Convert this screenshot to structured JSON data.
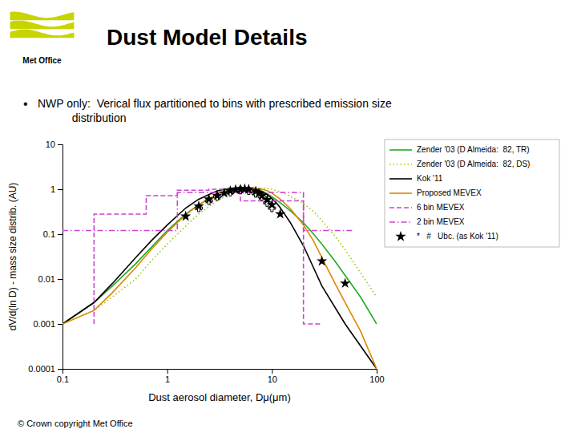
{
  "chart_data": {
    "type": "line",
    "title": "Dust Model Details",
    "annotations": [
      "Met Office",
      "•",
      "NWP only:  Verical flux partitioned to bins with prescribed emission size\n           distribution",
      "© Crown copyright  Met Office"
    ],
    "xlabel": "Dust aerosol diameter, Dμ(μm)",
    "ylabel": "dV/d(ln D) - mass size distrib. (AU)",
    "log": true,
    "grid": false,
    "legend": "right",
    "xlim": [
      0.1,
      100
    ],
    "ylim": [
      0.0001,
      10
    ],
    "xticks": [
      0.1,
      1,
      10,
      100
    ],
    "yticks": [
      0.0001,
      0.001,
      0.01,
      0.1,
      1,
      10
    ],
    "series": [
      {
        "name": "Zender '03 (D Almeida:  82, TR)",
        "type": "line",
        "color": "#22aa22",
        "line_style": "solid",
        "x": [
          0.1,
          0.2,
          0.3,
          0.5,
          0.7,
          1.0,
          1.5,
          2.0,
          3.0,
          4.0,
          5.0,
          6.0,
          7.0,
          8.0,
          9.0,
          10.0,
          12.0,
          15.0,
          20.0,
          25.0,
          30.0,
          40.0,
          50.0,
          70.0,
          100.0
        ],
        "values": [
          0.001,
          0.003,
          0.007,
          0.022,
          0.05,
          0.12,
          0.28,
          0.45,
          0.78,
          1.0,
          1.1,
          1.08,
          1.0,
          0.9,
          0.8,
          0.68,
          0.5,
          0.33,
          0.18,
          0.1,
          0.06,
          0.025,
          0.012,
          0.004,
          0.001
        ]
      },
      {
        "name": "Zender '03 (D Almeida:  82, DS)",
        "type": "line",
        "color": "#99cc00",
        "line_style": "dotted",
        "x": [
          0.1,
          0.2,
          0.3,
          0.5,
          0.7,
          1.0,
          1.5,
          2.0,
          3.0,
          4.0,
          5.0,
          6.0,
          7.0,
          8.0,
          9.0,
          10.0,
          12.0,
          15.0,
          20.0,
          25.0,
          30.0,
          40.0,
          50.0,
          70.0,
          100.0
        ],
        "values": [
          0.001,
          0.002,
          0.004,
          0.01,
          0.025,
          0.06,
          0.15,
          0.28,
          0.56,
          0.78,
          0.93,
          1.0,
          1.05,
          1.06,
          1.04,
          1.0,
          0.88,
          0.7,
          0.48,
          0.32,
          0.2,
          0.09,
          0.045,
          0.014,
          0.004
        ]
      },
      {
        "name": "Kok '11",
        "type": "line",
        "color": "#000000",
        "line_style": "solid",
        "x": [
          0.1,
          0.2,
          0.3,
          0.5,
          0.7,
          1.0,
          1.5,
          2.0,
          3.0,
          4.0,
          5.0,
          6.0,
          7.0,
          8.0,
          9.0,
          10.0,
          11.0,
          12.0,
          15.0,
          20.0,
          30.0,
          50.0,
          100.0
        ],
        "values": [
          0.001,
          0.003,
          0.008,
          0.03,
          0.07,
          0.16,
          0.38,
          0.6,
          0.92,
          1.05,
          1.08,
          1.05,
          0.98,
          0.88,
          0.76,
          0.62,
          0.5,
          0.39,
          0.18,
          0.055,
          0.007,
          0.001,
          0.0001
        ]
      },
      {
        "name": "Proposed MEVEX",
        "type": "line",
        "color": "#dd8800",
        "line_style": "solid",
        "x": [
          0.1,
          0.2,
          0.3,
          0.5,
          0.7,
          1.0,
          1.5,
          2.0,
          3.0,
          4.0,
          5.0,
          6.0,
          7.0,
          8.0,
          9.0,
          10.0,
          12.0,
          15.0,
          20.0,
          25.0,
          30.0,
          40.0,
          50.0,
          70.0,
          100.0
        ],
        "values": [
          0.001,
          0.002,
          0.005,
          0.018,
          0.045,
          0.11,
          0.27,
          0.45,
          0.78,
          0.97,
          1.05,
          1.07,
          1.06,
          1.0,
          0.93,
          0.82,
          0.6,
          0.37,
          0.16,
          0.07,
          0.03,
          0.008,
          0.003,
          0.0007,
          0.0001
        ]
      },
      {
        "name": "6 bin MEVEX",
        "type": "line",
        "color": "#cc44cc",
        "line_style": "dashed",
        "x": [
          0.2,
          0.2,
          0.63,
          0.63,
          1.25,
          1.25,
          2.5,
          2.5,
          5.0,
          5.0,
          20.0,
          20.0,
          30.0
        ],
        "values": [
          0.001,
          0.28,
          0.28,
          0.72,
          0.72,
          0.95,
          0.95,
          1.0,
          1.0,
          0.55,
          0.55,
          0.001,
          0.001
        ]
      },
      {
        "name": "2 bin MEVEX",
        "type": "line",
        "color": "#cc44cc",
        "line_style": "dashdot",
        "x": [
          0.1,
          0.1,
          1.25,
          1.25,
          20.0,
          20.0,
          60.0,
          60.0
        ],
        "values": [
          0.12,
          0.12,
          0.12,
          0.85,
          0.85,
          0.12,
          0.12,
          0.12
        ]
      },
      {
        "name": "*   #   Ubc. (as Kok '11)",
        "type": "scatter",
        "color": "#000000",
        "marker": "star",
        "x": [
          1.5,
          2.0,
          2.5,
          3.0,
          3.5,
          4.0,
          4.5,
          5.0,
          5.5,
          6.0,
          7.0,
          7.5,
          8.0,
          9.0,
          10.0,
          12.0,
          30.0,
          50.0
        ],
        "values": [
          0.25,
          0.42,
          0.6,
          0.72,
          0.82,
          0.92,
          0.98,
          1.0,
          1.02,
          1.0,
          0.9,
          0.82,
          0.72,
          0.58,
          0.45,
          0.28,
          0.025,
          0.008
        ]
      },
      {
        "type": "scatter",
        "color": "#000000",
        "marker": "plus",
        "x": [
          2.0,
          2.5,
          3.0,
          4.0,
          5.0,
          6.0,
          7.0,
          8.0,
          9.0,
          10.0
        ],
        "values": [
          0.38,
          0.55,
          0.68,
          0.85,
          0.95,
          0.92,
          0.8,
          0.68,
          0.5,
          0.38
        ]
      }
    ]
  }
}
